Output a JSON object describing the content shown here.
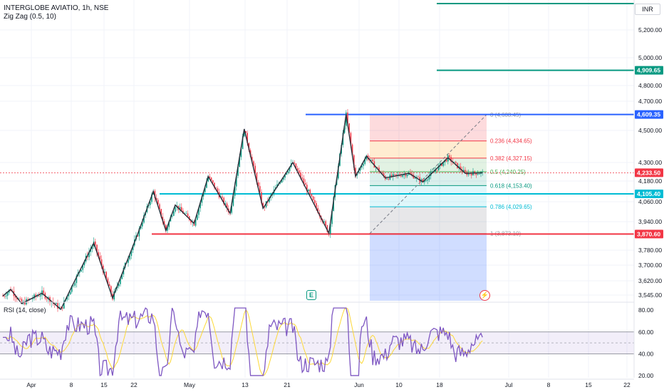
{
  "header": {
    "title": "INTERGLOBE AVIATIO, 1h, NSE",
    "indicator": "Zig Zag (0.5, 10)",
    "rsi_label": "RSI (14, close)"
  },
  "currency_button": "INR",
  "colors": {
    "zigzag": "#2a2e39",
    "price_line": "#2962ff",
    "current_price": "#f23645",
    "green_line": "#089981",
    "cyan_line": "#00bcd4",
    "red_line": "#f23645",
    "rsi_line": "#7e57c2",
    "rsi_ma": "#fdd835",
    "up_candle": "#089981",
    "down_candle": "#f23645"
  },
  "icons": {
    "earnings": "earnings-icon",
    "dividend": "dividend-icon"
  },
  "chart_data": {
    "type": "line",
    "symbol": "INTERGLOBE AVIATIO",
    "timeframe": "1h",
    "exchange": "NSE",
    "currency": "INR",
    "price_axis_ticks": [
      "5,200.00",
      "5,000.00",
      "4,800.00",
      "4,700.00",
      "4,500.00",
      "4,300.00",
      "4,180.00",
      "4,060.00",
      "3,940.00",
      "3,780.00",
      "3,700.00",
      "3,620.00",
      "3,545.00"
    ],
    "price_axis_tick_values": [
      5200,
      5000,
      4800,
      4700,
      4500,
      4300,
      4180,
      4060,
      3940,
      3780,
      3700,
      3620,
      3545
    ],
    "time_axis_labels": [
      "Apr",
      "8",
      "15",
      "22",
      "May",
      "13",
      "21",
      "Jun",
      "10",
      "18",
      "Jul",
      "8",
      "15",
      "22"
    ],
    "price_tags": [
      {
        "label": "4,909.65",
        "value": 4909.65,
        "color": "#089981"
      },
      {
        "label": "4,609.35",
        "value": 4609.35,
        "color": "#2962ff"
      },
      {
        "label": "4,233.50",
        "value": 4233.5,
        "color": "#f23645"
      },
      {
        "label": "4,105.40",
        "value": 4105.4,
        "color": "#00bcd4"
      },
      {
        "label": "3,870.60",
        "value": 3870.6,
        "color": "#f23645"
      }
    ],
    "horizontal_lines": [
      {
        "value": 5300,
        "color": "#089981"
      },
      {
        "value": 4909.65,
        "color": "#089981"
      },
      {
        "value": 4609.35,
        "color": "#2962ff"
      },
      {
        "value": 4105.4,
        "color": "#00bcd4"
      },
      {
        "value": 3870.6,
        "color": "#f23645"
      }
    ],
    "fibonacci": [
      {
        "label": "0 (4,608.45)",
        "ratio": 0,
        "value": 4608.45,
        "color": "#9598a1"
      },
      {
        "label": "0.236 (4,434.65)",
        "ratio": 0.236,
        "value": 4434.65,
        "color": "#f23645"
      },
      {
        "label": "0.382 (4,327.15)",
        "ratio": 0.382,
        "value": 4327.15,
        "color": "#f23645"
      },
      {
        "label": "0.5 (4,240.25)",
        "ratio": 0.5,
        "value": 4240.25,
        "color": "#4caf50"
      },
      {
        "label": "0.618 (4,153.40)",
        "ratio": 0.618,
        "value": 4153.4,
        "color": "#089981"
      },
      {
        "label": "0.786 (4,029.65)",
        "ratio": 0.786,
        "value": 4029.65,
        "color": "#00bcd4"
      },
      {
        "label": "1 (3,873.10)",
        "ratio": 1,
        "value": 3873.1,
        "color": "#9598a1"
      }
    ],
    "zigzag": {
      "bars": [
        0,
        5,
        12,
        25,
        37,
        44,
        58,
        70,
        86,
        96,
        104,
        110,
        122,
        131,
        145,
        154,
        166,
        185,
        208,
        219,
        225,
        232,
        244,
        259,
        268,
        284,
        295,
        306
      ],
      "values": [
        3540,
        3575,
        3500,
        3555,
        3470,
        3590,
        3820,
        3530,
        3870,
        4120,
        3890,
        4040,
        3930,
        4210,
        3990,
        4510,
        4020,
        4300,
        3875,
        4610,
        4210,
        4340,
        4200,
        4230,
        4175,
        4330,
        4230,
        4233.5
      ]
    },
    "rsi": {
      "axis_ticks": [
        "80.00",
        "60.00",
        "40.00",
        "20.00"
      ],
      "axis_tick_values": [
        80,
        60,
        40,
        20
      ],
      "upper_band": 60,
      "middle_band": 50,
      "lower_band": 40,
      "ylim": [
        18,
        86
      ]
    }
  }
}
